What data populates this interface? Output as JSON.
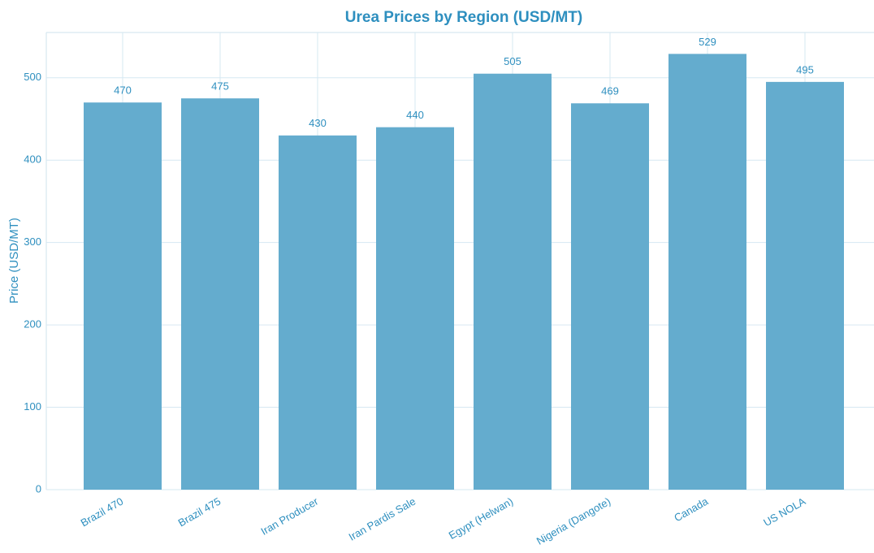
{
  "chart_data": {
    "type": "bar",
    "title": "Urea Prices by Region (USD/MT)",
    "y_label": "Price (USD/MT)",
    "categories": [
      "Brazil 470",
      "Brazil 475",
      "Iran Producer",
      "Iran Pardis Sale",
      "Egypt (Helwan)",
      "Nigeria (Dangote)",
      "Canada",
      "US NOLA"
    ],
    "values": [
      470,
      475,
      430,
      440,
      505,
      469,
      529,
      495
    ],
    "color": "#64acce",
    "ylim": [
      0,
      555
    ],
    "yticks": [
      0,
      100,
      200,
      300,
      400,
      500
    ],
    "grid": true
  }
}
